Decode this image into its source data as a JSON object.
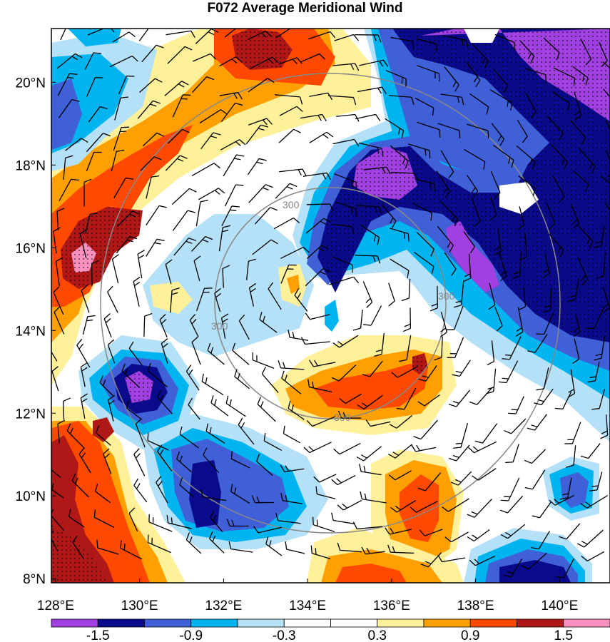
{
  "title": "F072 Average Meridional Wind",
  "map": {
    "lon_range": [
      127.9,
      141.2
    ],
    "lat_range": [
      7.9,
      21.3
    ],
    "x_ticks": [
      {
        "lon": 128,
        "label": "128°E"
      },
      {
        "lon": 130,
        "label": "130°E"
      },
      {
        "lon": 132,
        "label": "132°E"
      },
      {
        "lon": 134,
        "label": "134°E"
      },
      {
        "lon": 136,
        "label": "136°E"
      },
      {
        "lon": 138,
        "label": "138°E"
      },
      {
        "lon": 140,
        "label": "140°E"
      }
    ],
    "y_ticks": [
      {
        "lat": 8,
        "label": "8°N"
      },
      {
        "lat": 10,
        "label": "10°N"
      },
      {
        "lat": 12,
        "label": "12°N"
      },
      {
        "lat": 14,
        "label": "14°N"
      },
      {
        "lat": 16,
        "label": "16°N"
      },
      {
        "lat": 18,
        "label": "18°N"
      },
      {
        "lat": 20,
        "label": "20°N"
      }
    ],
    "range_ring_label": "300",
    "range_ring_color": "#888888"
  },
  "colorbar": {
    "levels": [
      "-1.5",
      "-0.9",
      "-0.3",
      "0.3",
      "0.9",
      "1.5"
    ],
    "colors": [
      "#a040e0",
      "#0a0a8c",
      "#4060d8",
      "#00b4f0",
      "#b4e0f8",
      "#ffffff",
      "#ffffff",
      "#fff09a",
      "#ffa000",
      "#ff4800",
      "#b01818",
      "#f890c0"
    ]
  },
  "field_colors": {
    "purple": "#a040e0",
    "navy": "#0a0a8c",
    "blue": "#4060d8",
    "cyan": "#00b4f0",
    "lightblue": "#b4e0f8",
    "yellow": "#fff09a",
    "orange": "#ffa000",
    "redorange": "#ff4800",
    "darkred": "#b01818",
    "pink": "#f890c0"
  }
}
